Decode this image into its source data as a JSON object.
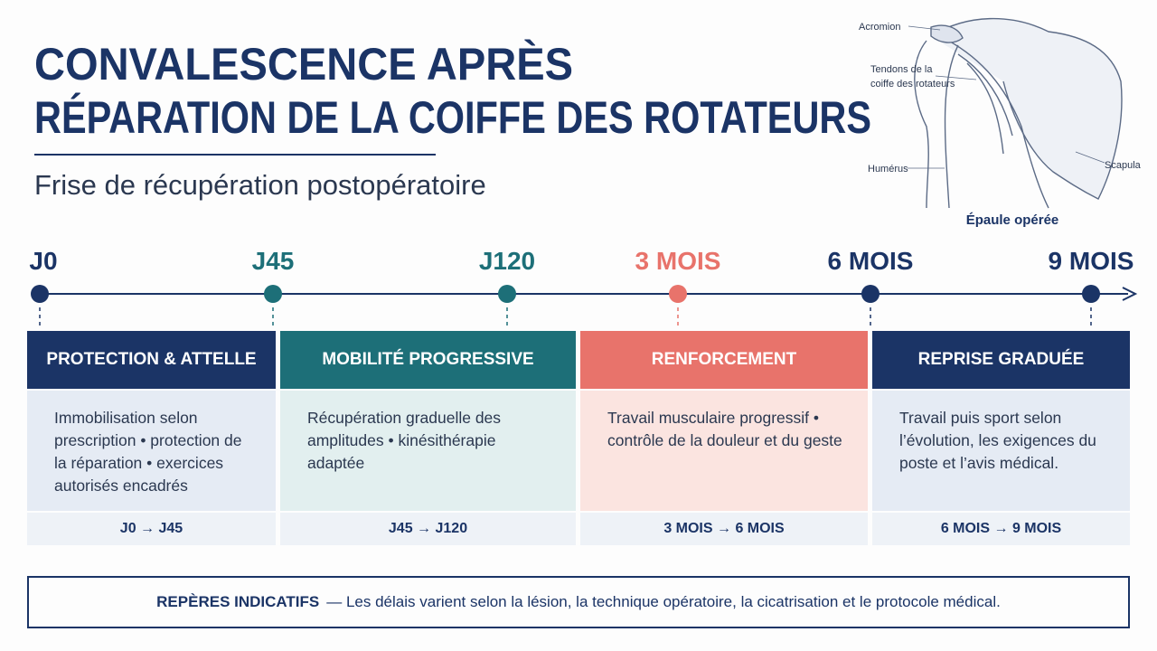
{
  "header": {
    "title_lines": [
      "CONVALESCENCE APRÈS",
      "RÉPARATION DE LA COIFFE DES ROTATEURS"
    ],
    "subtitle": "Frise de récupération postopératoire"
  },
  "illustration": {
    "labels": {
      "acromion": "Acromion",
      "tendons": [
        "Tendons de la",
        "coiffe des rotateurs"
      ],
      "humerus": "Humérus",
      "scapula": "Scapula"
    },
    "caption": "Épaule opérée"
  },
  "timeline": {
    "milestones": [
      {
        "label": "J0",
        "color": "#1b3466"
      },
      {
        "label": "J45",
        "color": "#1d6f78"
      },
      {
        "label": "J120",
        "color": "#1d6f78"
      },
      {
        "label": "3 MOIS",
        "color": "#e8736b"
      },
      {
        "label": "6 MOIS",
        "color": "#1b3466"
      },
      {
        "label": "9 MOIS",
        "color": "#1b3466"
      }
    ]
  },
  "phases": [
    {
      "title": "PROTECTION & ATTELLE",
      "body": "Immobilisation selon prescription • protection de la réparation • exercices autorisés encadrés",
      "range": "J0 → J45",
      "color": "#1b3466",
      "tint": "#e5ebf4"
    },
    {
      "title": "MOBILITÉ PROGRESSIVE",
      "body": "Récupération graduelle des amplitudes • kinésithérapie adaptée",
      "range": "J45 → J120",
      "color": "#1d6f78",
      "tint": "#e2efef"
    },
    {
      "title": "RENFORCEMENT",
      "body": "Travail musculaire progressif • contrôle de la douleur et du geste",
      "range": "3 MOIS → 6 MOIS",
      "color": "#e8736b",
      "tint": "#fbe4e0"
    },
    {
      "title": "REPRISE GRADUÉE",
      "body": "Travail puis sport selon l’évolution, les exigences du poste et l’avis médical.",
      "range": "6 MOIS → 9 MOIS",
      "color": "#1b3466",
      "tint": "#e5ebf4"
    }
  ],
  "note": {
    "label": "REPÈRES INDICATIFS",
    "text": "— Les délais varient selon la lésion, la technique opératoire, la cicatrisation et le protocole médical."
  }
}
